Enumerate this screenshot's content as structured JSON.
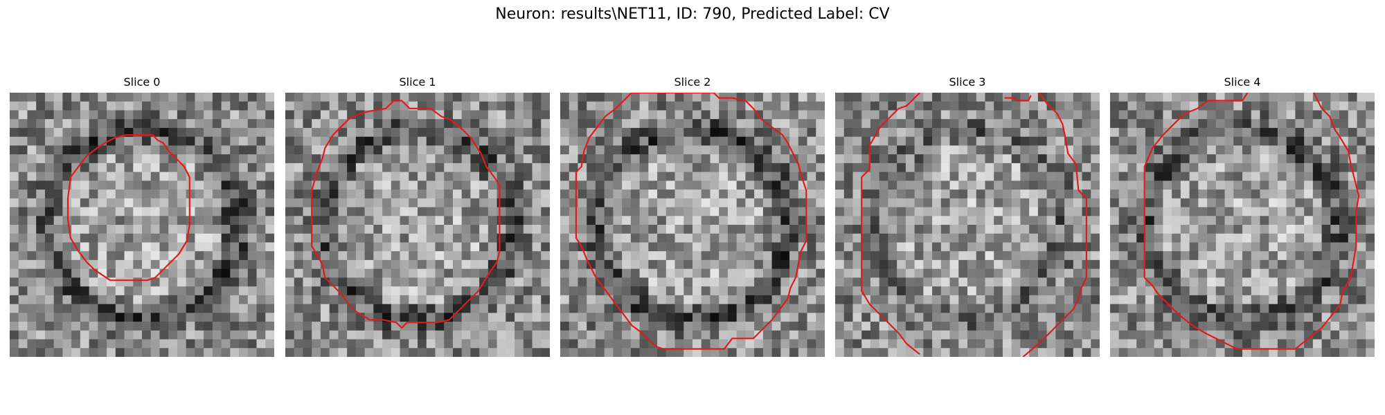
{
  "figure": {
    "title": "Neuron: results\\NET11, ID: 790, Predicted Label: CV"
  },
  "panels": [
    {
      "title": "Slice 0",
      "seed": 11,
      "dark_ring": 1.0,
      "contour": [
        [
          0.47,
          0.16
        ],
        [
          0.54,
          0.16
        ],
        [
          0.56,
          0.18
        ],
        [
          0.58,
          0.19
        ],
        [
          0.6,
          0.22
        ],
        [
          0.63,
          0.25
        ],
        [
          0.66,
          0.28
        ],
        [
          0.68,
          0.32
        ],
        [
          0.68,
          0.42
        ],
        [
          0.68,
          0.5
        ],
        [
          0.67,
          0.56
        ],
        [
          0.64,
          0.61
        ],
        [
          0.61,
          0.64
        ],
        [
          0.58,
          0.67
        ],
        [
          0.55,
          0.7
        ],
        [
          0.52,
          0.71
        ],
        [
          0.48,
          0.71
        ],
        [
          0.42,
          0.71
        ],
        [
          0.38,
          0.71
        ],
        [
          0.35,
          0.69
        ],
        [
          0.32,
          0.67
        ],
        [
          0.29,
          0.64
        ],
        [
          0.26,
          0.6
        ],
        [
          0.23,
          0.55
        ],
        [
          0.22,
          0.48
        ],
        [
          0.22,
          0.4
        ],
        [
          0.23,
          0.32
        ],
        [
          0.26,
          0.28
        ],
        [
          0.29,
          0.24
        ],
        [
          0.33,
          0.21
        ],
        [
          0.36,
          0.19
        ],
        [
          0.4,
          0.17
        ],
        [
          0.44,
          0.16
        ]
      ]
    },
    {
      "title": "Slice 1",
      "seed": 23,
      "dark_ring": 0.8,
      "contour": [
        [
          0.41,
          0.03
        ],
        [
          0.44,
          0.03
        ],
        [
          0.47,
          0.06
        ],
        [
          0.55,
          0.06
        ],
        [
          0.59,
          0.09
        ],
        [
          0.62,
          0.1
        ],
        [
          0.66,
          0.13
        ],
        [
          0.7,
          0.17
        ],
        [
          0.72,
          0.2
        ],
        [
          0.74,
          0.23
        ],
        [
          0.76,
          0.28
        ],
        [
          0.79,
          0.32
        ],
        [
          0.81,
          0.35
        ],
        [
          0.81,
          0.45
        ],
        [
          0.81,
          0.6
        ],
        [
          0.8,
          0.64
        ],
        [
          0.76,
          0.7
        ],
        [
          0.73,
          0.75
        ],
        [
          0.7,
          0.78
        ],
        [
          0.66,
          0.82
        ],
        [
          0.62,
          0.86
        ],
        [
          0.57,
          0.87
        ],
        [
          0.5,
          0.87
        ],
        [
          0.46,
          0.87
        ],
        [
          0.44,
          0.89
        ],
        [
          0.42,
          0.87
        ],
        [
          0.37,
          0.86
        ],
        [
          0.32,
          0.86
        ],
        [
          0.27,
          0.83
        ],
        [
          0.24,
          0.8
        ],
        [
          0.21,
          0.76
        ],
        [
          0.18,
          0.73
        ],
        [
          0.15,
          0.7
        ],
        [
          0.14,
          0.65
        ],
        [
          0.1,
          0.58
        ],
        [
          0.1,
          0.45
        ],
        [
          0.1,
          0.37
        ],
        [
          0.12,
          0.3
        ],
        [
          0.14,
          0.25
        ],
        [
          0.15,
          0.21
        ],
        [
          0.18,
          0.16
        ],
        [
          0.21,
          0.13
        ],
        [
          0.24,
          0.1
        ],
        [
          0.28,
          0.08
        ],
        [
          0.32,
          0.07
        ],
        [
          0.38,
          0.06
        ]
      ]
    },
    {
      "title": "Slice 2",
      "seed": 37,
      "dark_ring": 0.9,
      "contour": [
        [
          0.27,
          0.0
        ],
        [
          0.24,
          0.03
        ],
        [
          0.21,
          0.06
        ],
        [
          0.17,
          0.09
        ],
        [
          0.14,
          0.13
        ],
        [
          0.11,
          0.17
        ],
        [
          0.09,
          0.22
        ],
        [
          0.08,
          0.28
        ],
        [
          0.06,
          0.3
        ],
        [
          0.06,
          0.5
        ],
        [
          0.06,
          0.55
        ],
        [
          0.08,
          0.58
        ],
        [
          0.1,
          0.63
        ],
        [
          0.13,
          0.69
        ],
        [
          0.15,
          0.72
        ],
        [
          0.18,
          0.76
        ],
        [
          0.21,
          0.8
        ],
        [
          0.24,
          0.84
        ],
        [
          0.27,
          0.88
        ],
        [
          0.31,
          0.91
        ],
        [
          0.33,
          0.93
        ],
        [
          0.36,
          0.96
        ],
        [
          0.39,
          0.97
        ],
        [
          0.47,
          0.97
        ],
        [
          0.55,
          0.97
        ],
        [
          0.62,
          0.97
        ],
        [
          0.65,
          0.93
        ],
        [
          0.73,
          0.93
        ],
        [
          0.77,
          0.89
        ],
        [
          0.8,
          0.86
        ],
        [
          0.83,
          0.82
        ],
        [
          0.86,
          0.78
        ],
        [
          0.87,
          0.74
        ],
        [
          0.89,
          0.7
        ],
        [
          0.9,
          0.65
        ],
        [
          0.91,
          0.6
        ],
        [
          0.93,
          0.56
        ],
        [
          0.93,
          0.45
        ],
        [
          0.93,
          0.37
        ],
        [
          0.91,
          0.31
        ],
        [
          0.9,
          0.27
        ],
        [
          0.88,
          0.23
        ],
        [
          0.86,
          0.19
        ],
        [
          0.84,
          0.16
        ],
        [
          0.8,
          0.13
        ],
        [
          0.76,
          0.1
        ],
        [
          0.73,
          0.06
        ],
        [
          0.7,
          0.03
        ],
        [
          0.65,
          0.02
        ],
        [
          0.6,
          0.02
        ],
        [
          0.58,
          0.0
        ]
      ]
    },
    {
      "title": "Slice 3",
      "seed": 53,
      "dark_ring": 0.5,
      "contour_segments": [
        [
          [
            0.32,
            0.0
          ],
          [
            0.27,
            0.05
          ],
          [
            0.24,
            0.06
          ],
          [
            0.21,
            0.09
          ],
          [
            0.17,
            0.13
          ],
          [
            0.13,
            0.2
          ],
          [
            0.13,
            0.29
          ],
          [
            0.1,
            0.32
          ],
          [
            0.1,
            0.5
          ],
          [
            0.1,
            0.75
          ],
          [
            0.13,
            0.8
          ],
          [
            0.16,
            0.83
          ],
          [
            0.2,
            0.87
          ],
          [
            0.24,
            0.91
          ],
          [
            0.27,
            0.95
          ],
          [
            0.32,
            0.99
          ]
        ],
        [
          [
            0.64,
            0.02
          ],
          [
            0.68,
            0.02
          ],
          [
            0.69,
            0.03
          ],
          [
            0.73,
            0.03
          ],
          [
            0.74,
            0.01
          ]
        ],
        [
          [
            0.77,
            0.0
          ],
          [
            0.8,
            0.04
          ],
          [
            0.84,
            0.08
          ],
          [
            0.86,
            0.12
          ],
          [
            0.87,
            0.17
          ],
          [
            0.88,
            0.23
          ],
          [
            0.91,
            0.27
          ],
          [
            0.92,
            0.37
          ],
          [
            0.95,
            0.4
          ],
          [
            0.95,
            0.53
          ],
          [
            0.95,
            0.7
          ],
          [
            0.93,
            0.74
          ],
          [
            0.92,
            0.78
          ],
          [
            0.9,
            0.82
          ],
          [
            0.86,
            0.86
          ],
          [
            0.82,
            0.9
          ],
          [
            0.77,
            0.95
          ],
          [
            0.71,
            1.0
          ]
        ]
      ]
    },
    {
      "title": "Slice 4",
      "seed": 71,
      "dark_ring": 0.85,
      "contour_segments": [
        [
          [
            0.52,
            0.0
          ],
          [
            0.5,
            0.03
          ],
          [
            0.41,
            0.03
          ],
          [
            0.37,
            0.03
          ],
          [
            0.33,
            0.06
          ],
          [
            0.28,
            0.08
          ],
          [
            0.24,
            0.12
          ],
          [
            0.2,
            0.16
          ],
          [
            0.16,
            0.21
          ],
          [
            0.13,
            0.28
          ],
          [
            0.13,
            0.35
          ],
          [
            0.13,
            0.5
          ],
          [
            0.13,
            0.7
          ],
          [
            0.16,
            0.73
          ],
          [
            0.18,
            0.76
          ],
          [
            0.22,
            0.8
          ],
          [
            0.26,
            0.84
          ],
          [
            0.31,
            0.88
          ],
          [
            0.36,
            0.91
          ],
          [
            0.42,
            0.94
          ],
          [
            0.48,
            0.97
          ],
          [
            0.58,
            0.97
          ],
          [
            0.7,
            0.97
          ],
          [
            0.75,
            0.93
          ],
          [
            0.8,
            0.89
          ],
          [
            0.84,
            0.84
          ],
          [
            0.87,
            0.8
          ],
          [
            0.88,
            0.75
          ],
          [
            0.91,
            0.7
          ],
          [
            0.92,
            0.64
          ],
          [
            0.93,
            0.58
          ],
          [
            0.93,
            0.45
          ],
          [
            0.94,
            0.39
          ],
          [
            0.92,
            0.31
          ],
          [
            0.91,
            0.27
          ],
          [
            0.9,
            0.22
          ],
          [
            0.87,
            0.17
          ],
          [
            0.85,
            0.14
          ],
          [
            0.83,
            0.09
          ],
          [
            0.8,
            0.06
          ],
          [
            0.78,
            0.02
          ],
          [
            0.77,
            0.0
          ]
        ]
      ]
    }
  ],
  "contour_color": "#e31a1c"
}
